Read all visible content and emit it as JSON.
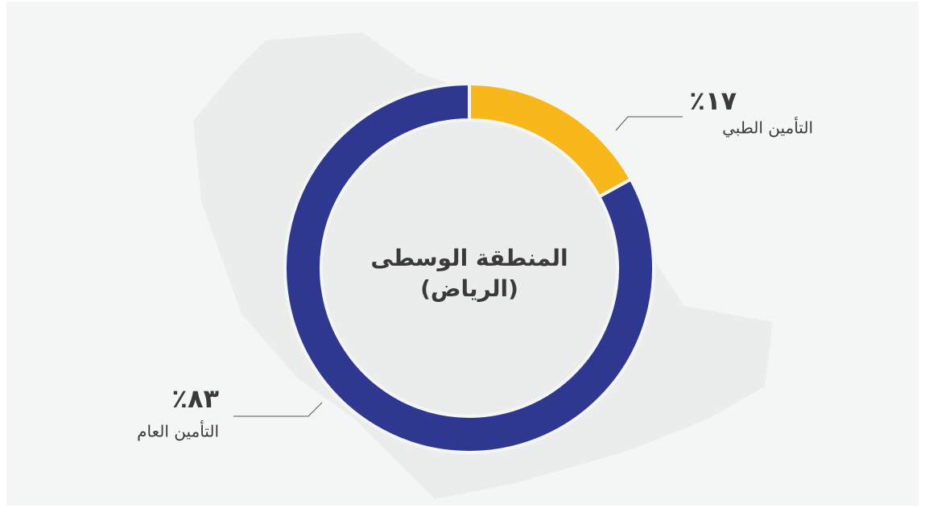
{
  "chart_data": {
    "type": "donut",
    "title": "المنطقة الوسطى",
    "subtitle": "(الرياض)",
    "categories": [
      "التأمين الطبي",
      "التأمين العام"
    ],
    "values": [
      17,
      83
    ],
    "value_labels": [
      "٪١٧",
      "٪٨٣"
    ],
    "colors": [
      "#f8b81a",
      "#2e3890"
    ]
  }
}
